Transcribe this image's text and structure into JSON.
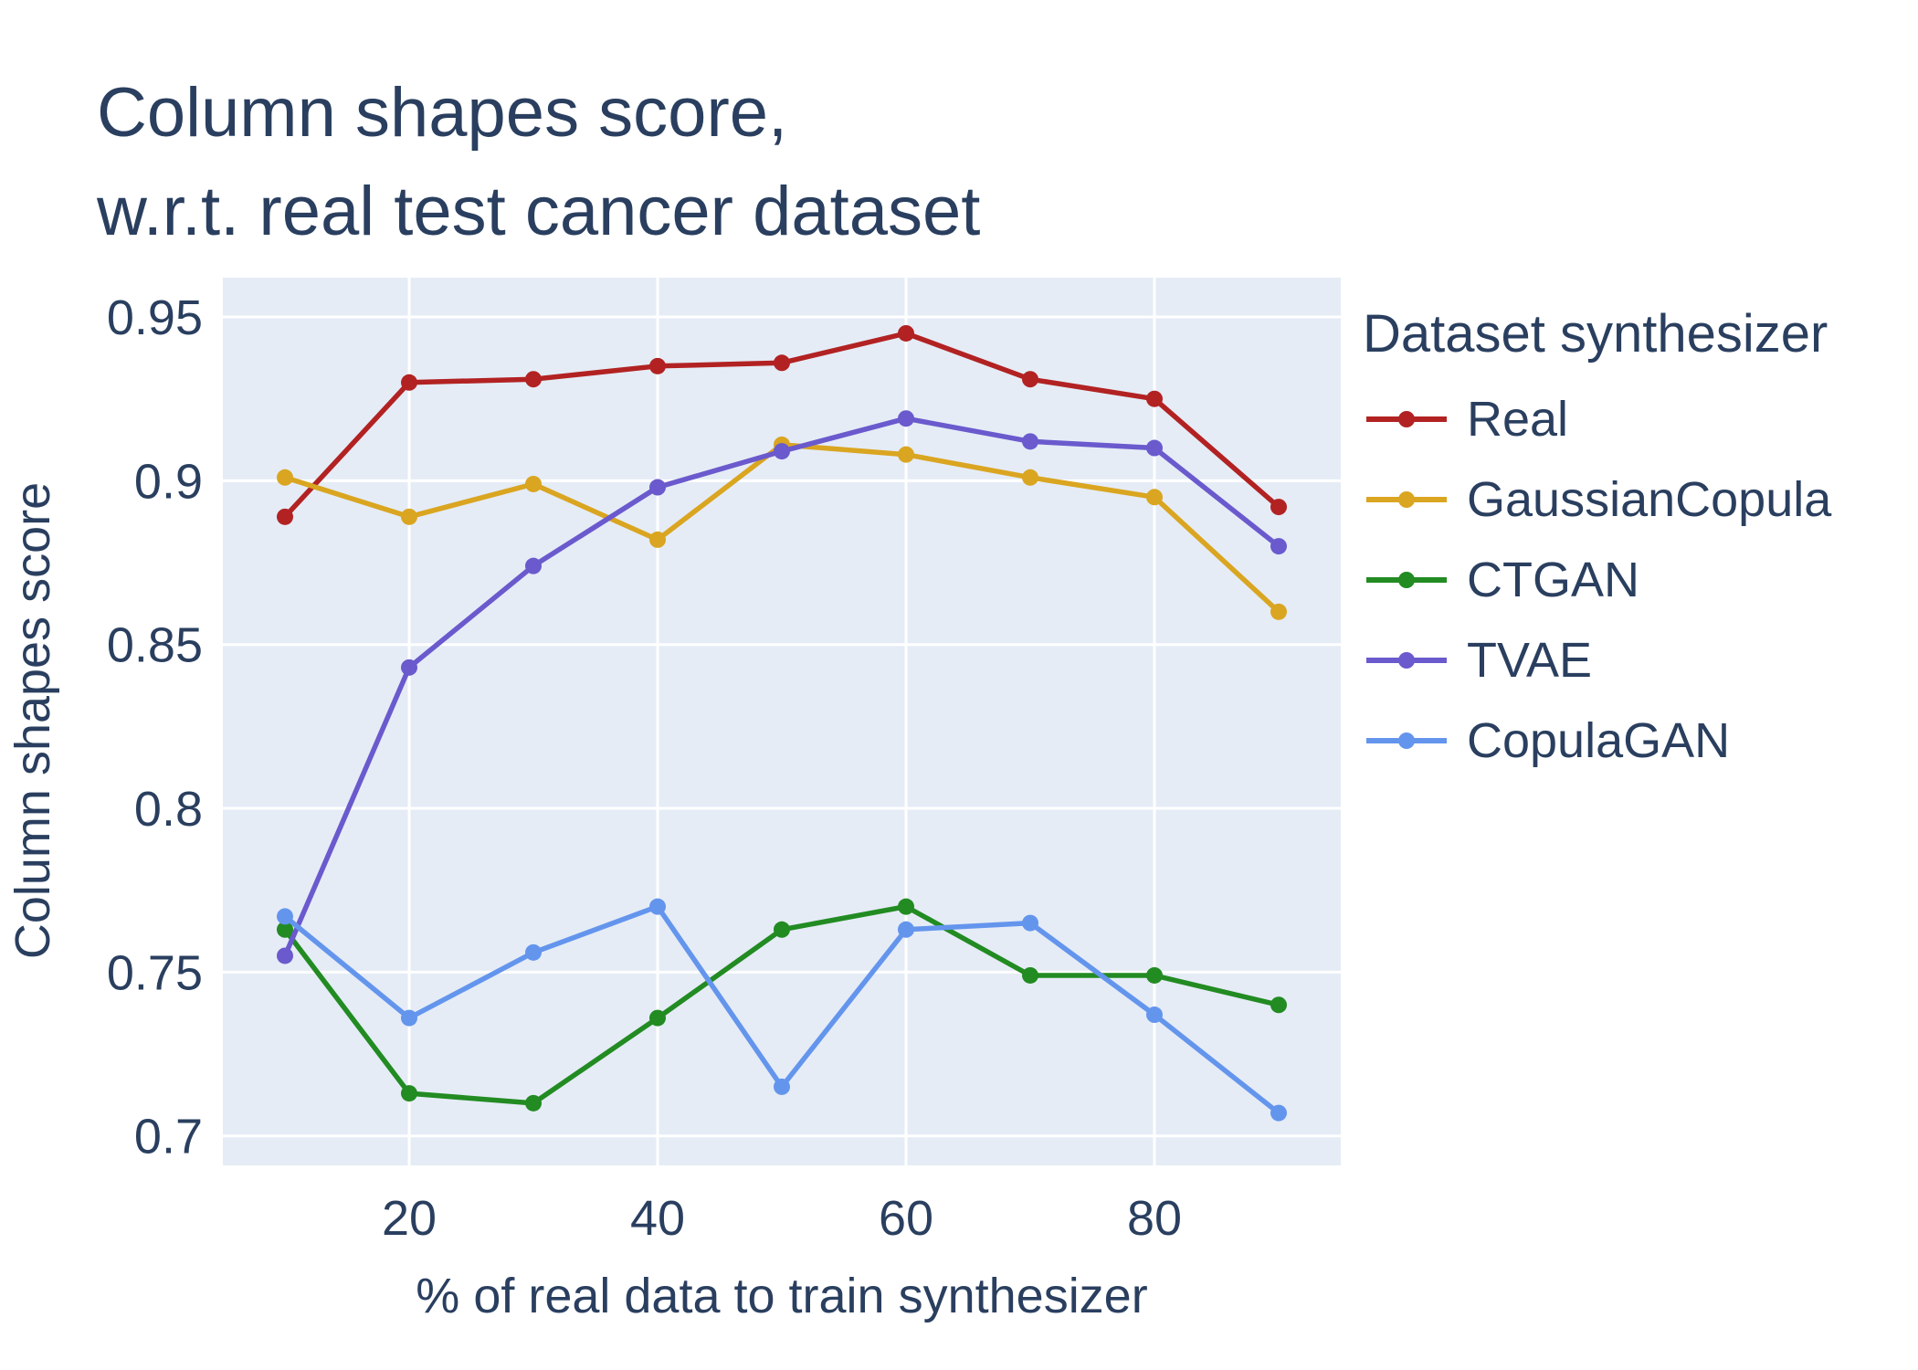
{
  "chart_data": {
    "type": "line",
    "title": [
      "Column shapes score,",
      "w.r.t. real test cancer dataset"
    ],
    "xlabel": "% of real data to train synthesizer",
    "ylabel": "Column shapes score",
    "x": [
      10,
      20,
      30,
      40,
      50,
      60,
      70,
      80,
      90
    ],
    "xlim": [
      5,
      95
    ],
    "ylim": [
      0.691,
      0.962
    ],
    "xticks": [
      20,
      40,
      60,
      80
    ],
    "xtick_labels": [
      "20",
      "40",
      "60",
      "80"
    ],
    "yticks": [
      0.7,
      0.75,
      0.8,
      0.85,
      0.9,
      0.95
    ],
    "ytick_labels": [
      "0.7",
      "0.75",
      "0.8",
      "0.85",
      "0.9",
      "0.95"
    ],
    "grid": true,
    "legend_title": "Dataset synthesizer",
    "legend_position": "right",
    "series": [
      {
        "name": "Real",
        "color": "#b22222",
        "values": [
          0.889,
          0.93,
          0.931,
          0.935,
          0.936,
          0.945,
          0.931,
          0.925,
          0.892
        ]
      },
      {
        "name": "GaussianCopula",
        "color": "#daa520",
        "values": [
          0.901,
          0.889,
          0.899,
          0.882,
          0.911,
          0.908,
          0.901,
          0.895,
          0.86
        ]
      },
      {
        "name": "CTGAN",
        "color": "#228b22",
        "values": [
          0.763,
          0.713,
          0.71,
          0.736,
          0.763,
          0.77,
          0.749,
          0.749,
          0.74
        ]
      },
      {
        "name": "TVAE",
        "color": "#6a5acd",
        "values": [
          0.755,
          0.843,
          0.874,
          0.898,
          0.909,
          0.919,
          0.912,
          0.91,
          0.88
        ]
      },
      {
        "name": "CopulaGAN",
        "color": "#6495ed",
        "values": [
          0.767,
          0.736,
          0.756,
          0.77,
          0.715,
          0.763,
          0.765,
          0.737,
          0.707
        ]
      }
    ]
  }
}
